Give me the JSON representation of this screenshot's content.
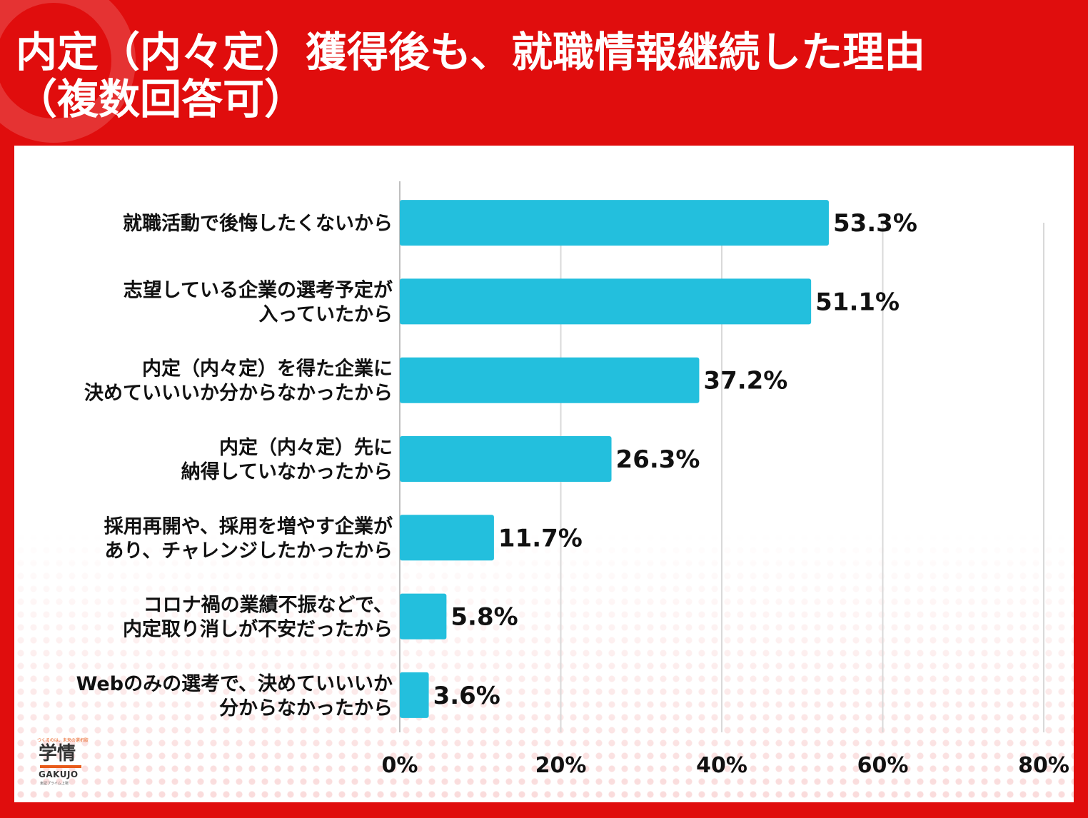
{
  "title_lines": [
    "内定（内々定）獲得後も、就職情報継続した理由",
    "（複数回答可）"
  ],
  "logo": {
    "tagline": "つくるのは、未来の選択肢",
    "mark": "学情",
    "wordmark": "GAKUJO",
    "sub": "東証プライム上場"
  },
  "colors": {
    "frame": "#e00d0d",
    "bar": "#23bfdd",
    "text": "#111111",
    "grid": "#d9d9d9"
  },
  "chart_data": {
    "type": "bar",
    "orientation": "horizontal",
    "categories": [
      [
        "就職活動で後悔したくないから"
      ],
      [
        "志望している企業の選考予定が",
        "入っていたから"
      ],
      [
        "内定（内々定）を得た企業に",
        "決めていいいか分からなかったから"
      ],
      [
        "内定（内々定）先に",
        "納得していなかったから"
      ],
      [
        "採用再開や、採用を増やす企業が",
        "あり、チャレンジしたかったから"
      ],
      [
        "コロナ禍の業績不振などで、",
        "内定取り消しが不安だったから"
      ],
      [
        "Webのみの選考で、決めていいいか",
        "分からなかったから"
      ]
    ],
    "values": [
      53.3,
      51.1,
      37.2,
      26.3,
      11.7,
      5.8,
      3.6
    ],
    "value_labels": [
      "53.3%",
      "51.1%",
      "37.2%",
      "26.3%",
      "11.7%",
      "5.8%",
      "3.6%"
    ],
    "xlim": [
      0,
      80
    ],
    "ticks": [
      0,
      20,
      40,
      60,
      80
    ],
    "tick_labels": [
      "0%",
      "20%",
      "40%",
      "60%",
      "80%"
    ],
    "grid": true,
    "legend": "none"
  }
}
